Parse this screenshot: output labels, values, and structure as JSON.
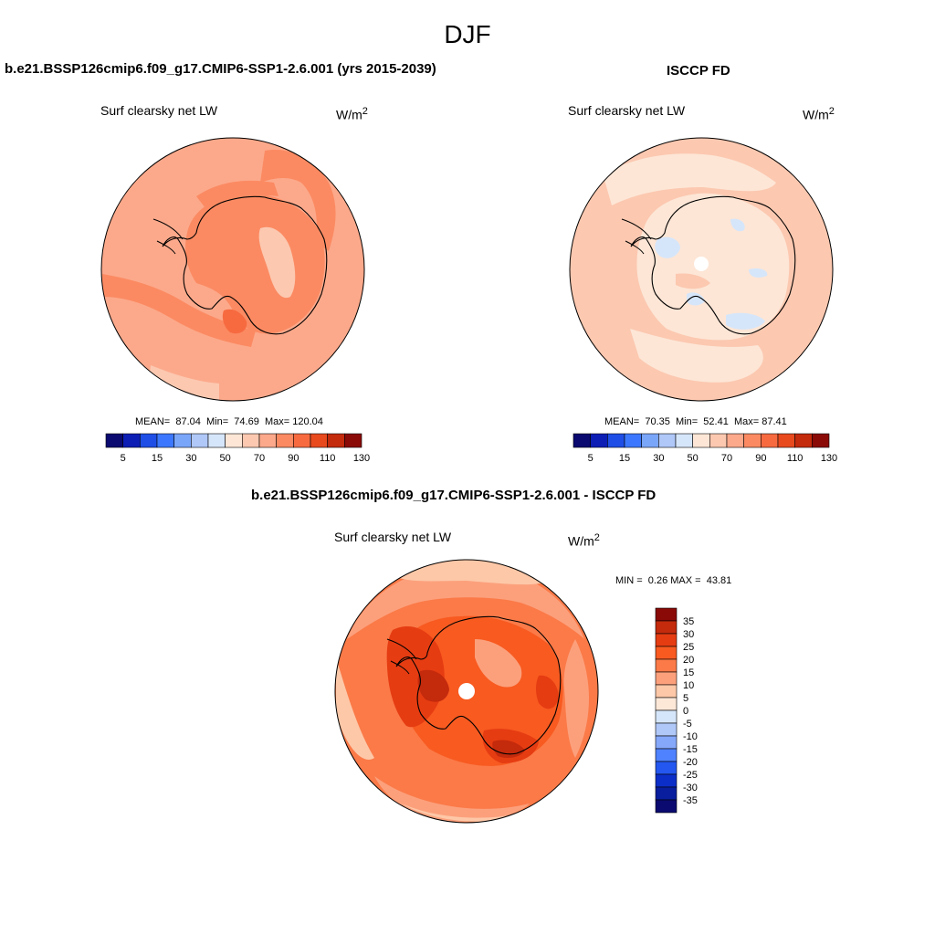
{
  "figure": {
    "title": "DJF",
    "panel1": {
      "title": "b.e21.BSSP126cmip6.f09_g17.CMIP6-SSP1-2.6.001 (yrs 2015-2039)",
      "variable": "Surf clearsky net LW",
      "units_base": "W/m",
      "units_exp": "2",
      "stats": {
        "mean_label": "MEAN=",
        "mean": "87.04",
        "min_label": "Min=",
        "min": "74.69",
        "max_label": "Max=",
        "max": "120.04"
      }
    },
    "panel2": {
      "title": "ISCCP FD",
      "variable": "Surf clearsky net LW",
      "units_base": "W/m",
      "units_exp": "2",
      "stats": {
        "mean_label": "MEAN=",
        "mean": "70.35",
        "min_label": "Min=",
        "min": "52.41",
        "max_label": "Max=",
        "max": "87.41"
      }
    },
    "panel3": {
      "title": "b.e21.BSSP126cmip6.f09_g17.CMIP6-SSP1-2.6.001 - ISCCP FD",
      "variable": "Surf clearsky net LW",
      "units_base": "W/m",
      "units_exp": "2",
      "stats": {
        "min_label": "MIN =",
        "min": "0.26",
        "max_label": "MAX =",
        "max": "43.81"
      }
    }
  },
  "colorbar_h": {
    "colors": [
      "#0a0a70",
      "#0c1eb4",
      "#1e4ee6",
      "#3c78ff",
      "#7aa6fa",
      "#b0c8f8",
      "#d6e6fa",
      "#fde6d6",
      "#fcc8b0",
      "#fca98b",
      "#fb8a62",
      "#f76a40",
      "#e84a1e",
      "#c42a0c",
      "#8a0a08"
    ],
    "labels": [
      "5",
      "15",
      "30",
      "50",
      "70",
      "90",
      "110",
      "130"
    ]
  },
  "colorbar_v": {
    "colors": [
      "#8a0a08",
      "#c42a0c",
      "#e63c12",
      "#f85a20",
      "#fb7a48",
      "#fca07c",
      "#fdc8a8",
      "#fde8d8",
      "#d6e6fa",
      "#b0c8f8",
      "#86a8fa",
      "#4f82ff",
      "#2457f0",
      "#0c2ec8",
      "#081e9e",
      "#0a0a70"
    ],
    "labels": [
      "35",
      "30",
      "25",
      "20",
      "15",
      "10",
      "5",
      "0",
      "-5",
      "-10",
      "-15",
      "-20",
      "-25",
      "-30",
      "-35"
    ]
  },
  "map_colors": {
    "p1_ocean": "#fca98b",
    "p1_warm": "#fb8a62",
    "p1_hot": "#f76a40",
    "p1_cool": "#fcc8b0",
    "p2_ocean": "#fcc8b0",
    "p2_land": "#fde6d6",
    "p2_light": "#fde6d6",
    "p2_blue": "#d6e6fa",
    "p3_base": "#fb7a48",
    "p3_light": "#fca07c",
    "p3_pale": "#fdc8a8",
    "p3_hot": "#f85a20",
    "p3_dark": "#e63c12",
    "p3_darker": "#c42a0c"
  }
}
